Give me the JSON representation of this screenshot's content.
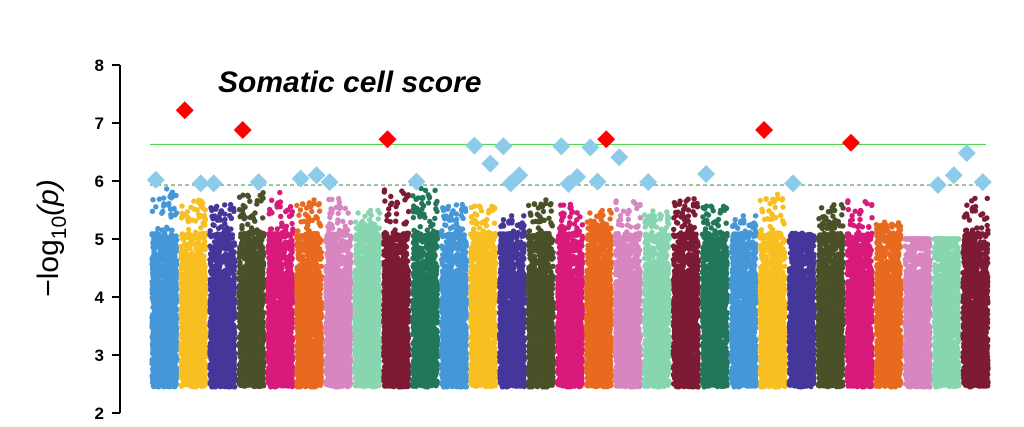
{
  "chart_data": {
    "type": "scatter",
    "subtype": "manhattan",
    "title": "Somatic cell score",
    "ylabel": {
      "prefix": "−log",
      "sub": "10",
      "suffix": "(p)"
    },
    "ylim": [
      2,
      8
    ],
    "yticks": [
      2,
      3,
      4,
      5,
      6,
      7,
      8
    ],
    "grid": false,
    "thresholds": [
      {
        "value": 6.63,
        "style": "solid",
        "color": "#4dd84d"
      },
      {
        "value": 5.93,
        "style": "dashed",
        "color": "#4c9a4c"
      }
    ],
    "series": [
      {
        "color": "#4597d8",
        "peak": 5.9
      },
      {
        "color": "#f8bf22",
        "peak": 5.7
      },
      {
        "color": "#45369a",
        "peak": 5.6
      },
      {
        "color": "#4a5028",
        "peak": 5.8
      },
      {
        "color": "#d81a7a",
        "peak": 5.8
      },
      {
        "color": "#e86a1e",
        "peak": 5.7
      },
      {
        "color": "#d886c0",
        "peak": 5.7
      },
      {
        "color": "#88d6b0",
        "peak": 5.5
      },
      {
        "color": "#7d1a34",
        "peak": 5.9
      },
      {
        "color": "#22775a",
        "peak": 5.9
      },
      {
        "color": "#4597d8",
        "peak": 5.6
      },
      {
        "color": "#f8bf22",
        "peak": 5.6
      },
      {
        "color": "#45369a",
        "peak": 5.4
      },
      {
        "color": "#4a5028",
        "peak": 5.7
      },
      {
        "color": "#d81a7a",
        "peak": 5.6
      },
      {
        "color": "#e86a1e",
        "peak": 5.5
      },
      {
        "color": "#d886c0",
        "peak": 5.7
      },
      {
        "color": "#88d6b0",
        "peak": 5.5
      },
      {
        "color": "#7d1a34",
        "peak": 5.7
      },
      {
        "color": "#22775a",
        "peak": 5.6
      },
      {
        "color": "#4597d8",
        "peak": 5.4
      },
      {
        "color": "#f8bf22",
        "peak": 5.8
      },
      {
        "color": "#45369a",
        "peak": 5.1
      },
      {
        "color": "#4a5028",
        "peak": 5.6
      },
      {
        "color": "#d81a7a",
        "peak": 5.7
      },
      {
        "color": "#e86a1e",
        "peak": 5.3
      },
      {
        "color": "#d886c0",
        "peak": 5.0
      },
      {
        "color": "#88d6b0",
        "peak": 5.0
      },
      {
        "color": "#7d1a34",
        "peak": 5.7
      }
    ],
    "highlights": [
      {
        "chromosome": 1,
        "value": 6.02,
        "color": "#8ccbea"
      },
      {
        "chromosome": 2,
        "value": 7.22,
        "color": "#ff0000"
      },
      {
        "chromosome": 2,
        "value": 5.96,
        "color": "#8ccbea"
      },
      {
        "chromosome": 3,
        "value": 5.96,
        "color": "#8ccbea"
      },
      {
        "chromosome": 4,
        "value": 6.88,
        "color": "#ff0000"
      },
      {
        "chromosome": 4,
        "value": 5.98,
        "color": "#8ccbea"
      },
      {
        "chromosome": 6,
        "value": 6.04,
        "color": "#8ccbea"
      },
      {
        "chromosome": 6,
        "value": 6.1,
        "color": "#8ccbea"
      },
      {
        "chromosome": 7,
        "value": 5.98,
        "color": "#8ccbea"
      },
      {
        "chromosome": 9,
        "value": 6.72,
        "color": "#ff0000"
      },
      {
        "chromosome": 10,
        "value": 5.99,
        "color": "#8ccbea"
      },
      {
        "chromosome": 12,
        "value": 6.61,
        "color": "#8ccbea"
      },
      {
        "chromosome": 12,
        "value": 6.3,
        "color": "#8ccbea"
      },
      {
        "chromosome": 13,
        "value": 6.6,
        "color": "#8ccbea"
      },
      {
        "chromosome": 13,
        "value": 6.1,
        "color": "#8ccbea"
      },
      {
        "chromosome": 13,
        "value": 5.96,
        "color": "#8ccbea"
      },
      {
        "chromosome": 15,
        "value": 6.6,
        "color": "#8ccbea"
      },
      {
        "chromosome": 15,
        "value": 6.07,
        "color": "#8ccbea"
      },
      {
        "chromosome": 15,
        "value": 5.95,
        "color": "#8ccbea"
      },
      {
        "chromosome": 16,
        "value": 6.58,
        "color": "#8ccbea"
      },
      {
        "chromosome": 16,
        "value": 6.72,
        "color": "#ff0000"
      },
      {
        "chromosome": 16,
        "value": 5.99,
        "color": "#8ccbea"
      },
      {
        "chromosome": 17,
        "value": 6.41,
        "color": "#8ccbea"
      },
      {
        "chromosome": 18,
        "value": 5.98,
        "color": "#8ccbea"
      },
      {
        "chromosome": 20,
        "value": 6.12,
        "color": "#8ccbea"
      },
      {
        "chromosome": 22,
        "value": 6.88,
        "color": "#ff0000"
      },
      {
        "chromosome": 23,
        "value": 5.96,
        "color": "#8ccbea"
      },
      {
        "chromosome": 25,
        "value": 6.66,
        "color": "#ff0000"
      },
      {
        "chromosome": 28,
        "value": 5.93,
        "color": "#8ccbea"
      },
      {
        "chromosome": 28,
        "value": 6.1,
        "color": "#8ccbea"
      },
      {
        "chromosome": 29,
        "value": 6.48,
        "color": "#8ccbea"
      },
      {
        "chromosome": 29,
        "value": 5.98,
        "color": "#8ccbea"
      }
    ]
  }
}
